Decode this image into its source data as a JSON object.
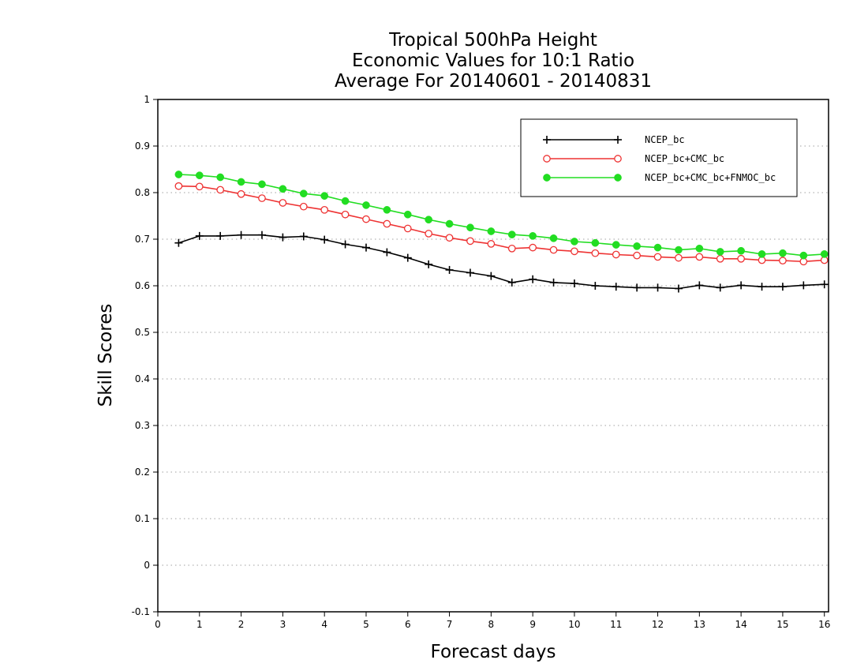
{
  "chart_data": {
    "type": "line",
    "title": [
      "Tropical 500hPa Height",
      "Economic Values for 10:1 Ratio",
      "Average For 20140601 - 20140831"
    ],
    "xlabel": "Forecast days",
    "ylabel": "Skill Scores",
    "xlim": [
      0,
      16.1
    ],
    "ylim": [
      -0.1,
      1
    ],
    "xticks": [
      0,
      1,
      2,
      3,
      4,
      5,
      6,
      7,
      8,
      9,
      10,
      11,
      12,
      13,
      14,
      15,
      16
    ],
    "yticks": [
      -0.1,
      0,
      0.1,
      0.2,
      0.3,
      0.4,
      0.5,
      0.6,
      0.7,
      0.8,
      0.9,
      1
    ],
    "ytick_labels": [
      "-0.1",
      "0",
      "0.1",
      "0.2",
      "0.3",
      "0.4",
      "0.5",
      "0.6",
      "0.7",
      "0.8",
      "0.9",
      "1"
    ],
    "grid": "horizontal-dotted",
    "legend_position": "top-right",
    "x": [
      0.5,
      1,
      1.5,
      2,
      2.5,
      3,
      3.5,
      4,
      4.5,
      5,
      5.5,
      6,
      6.5,
      7,
      7.5,
      8,
      8.5,
      9,
      9.5,
      10,
      10.5,
      11,
      11.5,
      12,
      12.5,
      13,
      13.5,
      14,
      14.5,
      15,
      15.5,
      16
    ],
    "series": [
      {
        "name": "NCEP_bc",
        "color": "#000000",
        "marker": "plus",
        "values": [
          0.692,
          0.707,
          0.707,
          0.709,
          0.709,
          0.704,
          0.706,
          0.699,
          0.689,
          0.682,
          0.672,
          0.66,
          0.646,
          0.634,
          0.628,
          0.621,
          0.607,
          0.614,
          0.607,
          0.605,
          0.6,
          0.598,
          0.596,
          0.596,
          0.594,
          0.601,
          0.596,
          0.601,
          0.598,
          0.598,
          0.601,
          0.603
        ]
      },
      {
        "name": "NCEP_bc+CMC_bc",
        "color": "#ee3333",
        "marker": "open-circle",
        "values": [
          0.814,
          0.813,
          0.806,
          0.797,
          0.788,
          0.778,
          0.77,
          0.763,
          0.753,
          0.743,
          0.733,
          0.723,
          0.712,
          0.703,
          0.696,
          0.69,
          0.68,
          0.682,
          0.677,
          0.674,
          0.67,
          0.667,
          0.665,
          0.662,
          0.66,
          0.662,
          0.658,
          0.658,
          0.655,
          0.654,
          0.652,
          0.655
        ]
      },
      {
        "name": "NCEP_bc+CMC_bc+FNMOC_bc",
        "color": "#22dd22",
        "marker": "filled-circle",
        "values": [
          0.839,
          0.837,
          0.833,
          0.823,
          0.818,
          0.808,
          0.798,
          0.793,
          0.782,
          0.773,
          0.763,
          0.753,
          0.742,
          0.733,
          0.725,
          0.717,
          0.71,
          0.707,
          0.702,
          0.695,
          0.692,
          0.688,
          0.685,
          0.682,
          0.677,
          0.68,
          0.673,
          0.675,
          0.668,
          0.67,
          0.665,
          0.668
        ]
      }
    ]
  }
}
